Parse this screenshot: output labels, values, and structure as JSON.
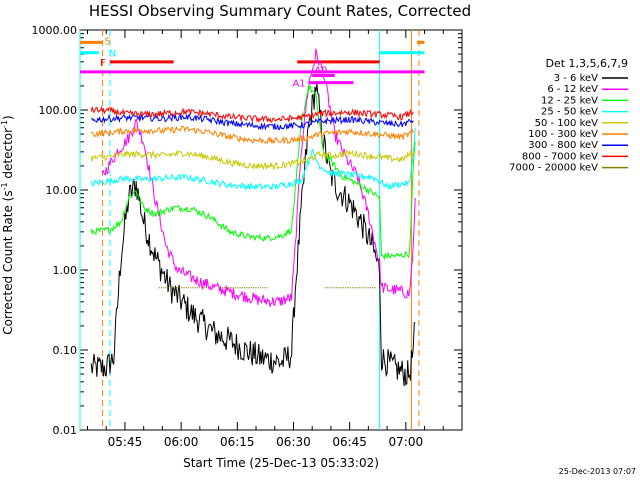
{
  "chart_data": {
    "type": "line",
    "title": "HESSI Observing Summary Count Rates, Corrected",
    "xlabel": "Start Time (25-Dec-13 05:33:02)",
    "ylabel": "Corrected Count Rate (s",
    "ylabel_sup": "-1",
    "ylabel_tail": " detector",
    "ylabel_close": ")",
    "timestamp": "25-Dec-2013 07:07",
    "yscale": "log",
    "ylim": [
      0.01,
      1000
    ],
    "xlim_min": [
      -12,
      90
    ],
    "y_ticks": [
      {
        "v": 0.01,
        "label": "0.01"
      },
      {
        "v": 0.1,
        "label": "0.10"
      },
      {
        "v": 1,
        "label": "1.00"
      },
      {
        "v": 10,
        "label": "10.00"
      },
      {
        "v": 100,
        "label": "100.00"
      },
      {
        "v": 1000,
        "label": "1000.00"
      }
    ],
    "x_ticks": [
      {
        "m": 0,
        "label": "05:45"
      },
      {
        "m": 15,
        "label": "06:00"
      },
      {
        "m": 30,
        "label": "06:15"
      },
      {
        "m": 45,
        "label": "06:30"
      },
      {
        "m": 60,
        "label": "06:45"
      },
      {
        "m": 75,
        "label": "07:00"
      }
    ],
    "legend_header": "Det 1,3,5,6,7,9",
    "legend_placement": "right",
    "series": [
      {
        "name": "3 - 6 keV",
        "color": "#000000",
        "points": [
          [
            -9,
            0.06
          ],
          [
            -5,
            0.06
          ],
          [
            -3,
            0.08
          ],
          [
            -1,
            1.6
          ],
          [
            1,
            8
          ],
          [
            3,
            12
          ],
          [
            5,
            4
          ],
          [
            8,
            1.5
          ],
          [
            12,
            0.6
          ],
          [
            18,
            0.28
          ],
          [
            24,
            0.16
          ],
          [
            28,
            0.13
          ],
          [
            32,
            0.1
          ],
          [
            36,
            0.08
          ],
          [
            42,
            0.07
          ],
          [
            44.5,
            0.09
          ],
          [
            45.5,
            0.6
          ],
          [
            47,
            5
          ],
          [
            49,
            60
          ],
          [
            51,
            200
          ],
          [
            53,
            40
          ],
          [
            55,
            15
          ],
          [
            57,
            10
          ],
          [
            60,
            7
          ],
          [
            63,
            4
          ],
          [
            66,
            2
          ],
          [
            68,
            1
          ],
          [
            68.5,
            0.08
          ],
          [
            72,
            0.06
          ],
          [
            75,
            0.05
          ],
          [
            76,
            0.05
          ],
          [
            77,
            0.1
          ],
          [
            77.5,
            0.22
          ]
        ]
      },
      {
        "name": "6 - 12 keV",
        "color": "#ff00ff",
        "points": [
          [
            -6,
            15
          ],
          [
            -2,
            30
          ],
          [
            1,
            45
          ],
          [
            3,
            70
          ],
          [
            5,
            40
          ],
          [
            8,
            8
          ],
          [
            11,
            2
          ],
          [
            14,
            1
          ],
          [
            19,
            0.75
          ],
          [
            24,
            0.6
          ],
          [
            30,
            0.5
          ],
          [
            36,
            0.42
          ],
          [
            41,
            0.4
          ],
          [
            44.5,
            0.45
          ],
          [
            45.5,
            2
          ],
          [
            47,
            30
          ],
          [
            49,
            200
          ],
          [
            51,
            500
          ],
          [
            53,
            300
          ],
          [
            56,
            50
          ],
          [
            59,
            25
          ],
          [
            62,
            15
          ],
          [
            65,
            5
          ],
          [
            68,
            1.2
          ],
          [
            68.5,
            0.6
          ],
          [
            73,
            0.55
          ],
          [
            76,
            0.5
          ],
          [
            77,
            2
          ],
          [
            77.5,
            8
          ]
        ]
      },
      {
        "name": "12 - 25 keV",
        "color": "#00ff00",
        "points": [
          [
            -9,
            3
          ],
          [
            -4,
            3.2
          ],
          [
            -1,
            4
          ],
          [
            1,
            8
          ],
          [
            3,
            10
          ],
          [
            5,
            6
          ],
          [
            8,
            5
          ],
          [
            13,
            6
          ],
          [
            18,
            5.8
          ],
          [
            23,
            4.5
          ],
          [
            28,
            3
          ],
          [
            33,
            2.6
          ],
          [
            38,
            2.5
          ],
          [
            42,
            2.7
          ],
          [
            44.5,
            3.2
          ],
          [
            45.5,
            10
          ],
          [
            47,
            60
          ],
          [
            49,
            200
          ],
          [
            51,
            150
          ],
          [
            53,
            30
          ],
          [
            56,
            20
          ],
          [
            58,
            15
          ],
          [
            62,
            12
          ],
          [
            65,
            10
          ],
          [
            68,
            8
          ],
          [
            68.5,
            1.5
          ],
          [
            73,
            1.5
          ],
          [
            76,
            1.6
          ],
          [
            77,
            20
          ],
          [
            77.5,
            40
          ]
        ]
      },
      {
        "name": "25 - 50 keV",
        "color": "#00ffff",
        "points": [
          [
            -9,
            12
          ],
          [
            -4,
            13
          ],
          [
            0,
            14
          ],
          [
            5,
            13.5
          ],
          [
            10,
            14
          ],
          [
            16,
            14.5
          ],
          [
            22,
            13
          ],
          [
            28,
            11.5
          ],
          [
            34,
            11
          ],
          [
            40,
            11
          ],
          [
            44,
            12
          ],
          [
            47,
            13
          ],
          [
            50,
            30
          ],
          [
            52,
            20
          ],
          [
            55,
            16
          ],
          [
            58,
            16
          ],
          [
            62,
            15
          ],
          [
            66,
            14.5
          ],
          [
            68,
            13
          ],
          [
            70,
            11
          ],
          [
            74,
            12
          ],
          [
            76,
            12
          ],
          [
            77,
            30
          ],
          [
            77.5,
            60
          ]
        ]
      },
      {
        "name": "50 - 100 keV",
        "color": "#c8c800",
        "points": [
          [
            -9,
            25
          ],
          [
            -4,
            26
          ],
          [
            0,
            28
          ],
          [
            5,
            28
          ],
          [
            10,
            27
          ],
          [
            16,
            29
          ],
          [
            22,
            26
          ],
          [
            28,
            22
          ],
          [
            34,
            20
          ],
          [
            40,
            20
          ],
          [
            44,
            21
          ],
          [
            48,
            23
          ],
          [
            52,
            28
          ],
          [
            56,
            27
          ],
          [
            60,
            29
          ],
          [
            65,
            27
          ],
          [
            70,
            25
          ],
          [
            74,
            24
          ],
          [
            77,
            30
          ]
        ]
      },
      {
        "name": "100 - 300 keV",
        "color": "#ff8000",
        "points": [
          [
            -9,
            50
          ],
          [
            -4,
            52
          ],
          [
            0,
            55
          ],
          [
            5,
            56
          ],
          [
            10,
            55
          ],
          [
            16,
            58
          ],
          [
            22,
            53
          ],
          [
            28,
            46
          ],
          [
            34,
            42
          ],
          [
            40,
            41
          ],
          [
            44,
            42
          ],
          [
            48,
            44
          ],
          [
            52,
            50
          ],
          [
            56,
            52
          ],
          [
            60,
            54
          ],
          [
            65,
            51
          ],
          [
            70,
            48
          ],
          [
            74,
            46
          ],
          [
            77,
            52
          ]
        ]
      },
      {
        "name": "300 - 800 keV",
        "color": "#0000ff",
        "points": [
          [
            -9,
            75
          ],
          [
            -4,
            78
          ],
          [
            0,
            80
          ],
          [
            5,
            80
          ],
          [
            10,
            78
          ],
          [
            16,
            82
          ],
          [
            22,
            76
          ],
          [
            28,
            68
          ],
          [
            34,
            64
          ],
          [
            40,
            62
          ],
          [
            44,
            63
          ],
          [
            48,
            65
          ],
          [
            52,
            72
          ],
          [
            56,
            74
          ],
          [
            60,
            76
          ],
          [
            65,
            72
          ],
          [
            70,
            68
          ],
          [
            74,
            66
          ],
          [
            77,
            74
          ]
        ]
      },
      {
        "name": "800 - 7000 keV",
        "color": "#ff0000",
        "points": [
          [
            -9,
            100
          ],
          [
            -4,
            98
          ],
          [
            0,
            90
          ],
          [
            5,
            88
          ],
          [
            10,
            90
          ],
          [
            16,
            95
          ],
          [
            22,
            90
          ],
          [
            28,
            82
          ],
          [
            34,
            78
          ],
          [
            40,
            76
          ],
          [
            44,
            78
          ],
          [
            48,
            82
          ],
          [
            52,
            90
          ],
          [
            56,
            92
          ],
          [
            60,
            94
          ],
          [
            65,
            90
          ],
          [
            70,
            86
          ],
          [
            74,
            82
          ],
          [
            77,
            95
          ]
        ]
      },
      {
        "name": "7000 - 20000 keV",
        "color": "#808000",
        "points": [
          [
            9,
            0.6
          ],
          [
            22,
            0.6
          ],
          [
            25,
            0.6
          ],
          [
            53,
            0.6
          ],
          [
            67,
            0.6
          ]
        ]
      }
    ],
    "flag_bars": [
      {
        "label": "S",
        "color": "#ff8000",
        "y": 700,
        "segments": [
          [
            -12,
            -6
          ],
          [
            78,
            80
          ]
        ]
      },
      {
        "label": "N",
        "color": "#00ffff",
        "y": 520,
        "segments": [
          [
            -12,
            -7
          ],
          [
            68,
            80
          ]
        ]
      },
      {
        "label": "F",
        "color": "#ff0000",
        "y": 400,
        "segments": [
          [
            -4,
            13
          ],
          [
            46,
            68
          ]
        ]
      },
      {
        "label": "",
        "color": "#ff00ff",
        "y": 300,
        "segments": [
          [
            -12,
            80
          ]
        ]
      },
      {
        "label": "A0",
        "color": "#ff00ff",
        "y": 270,
        "segments": [
          [
            50,
            56
          ]
        ]
      },
      {
        "label": "A1",
        "color": "#ff00ff",
        "y": 220,
        "segments": [
          [
            49,
            61
          ]
        ]
      }
    ],
    "vlines": [
      {
        "m": -12,
        "color": "#00ffff",
        "dash": false
      },
      {
        "m": -6,
        "color": "#ff8000",
        "dash": true
      },
      {
        "m": -4,
        "color": "#00ffff",
        "dash": true
      },
      {
        "m": 68,
        "color": "#00ffff",
        "dash": false
      },
      {
        "m": 76.5,
        "color": "#ff8000",
        "dash": false
      },
      {
        "m": 78.5,
        "color": "#ff8000",
        "dash": true
      }
    ]
  }
}
